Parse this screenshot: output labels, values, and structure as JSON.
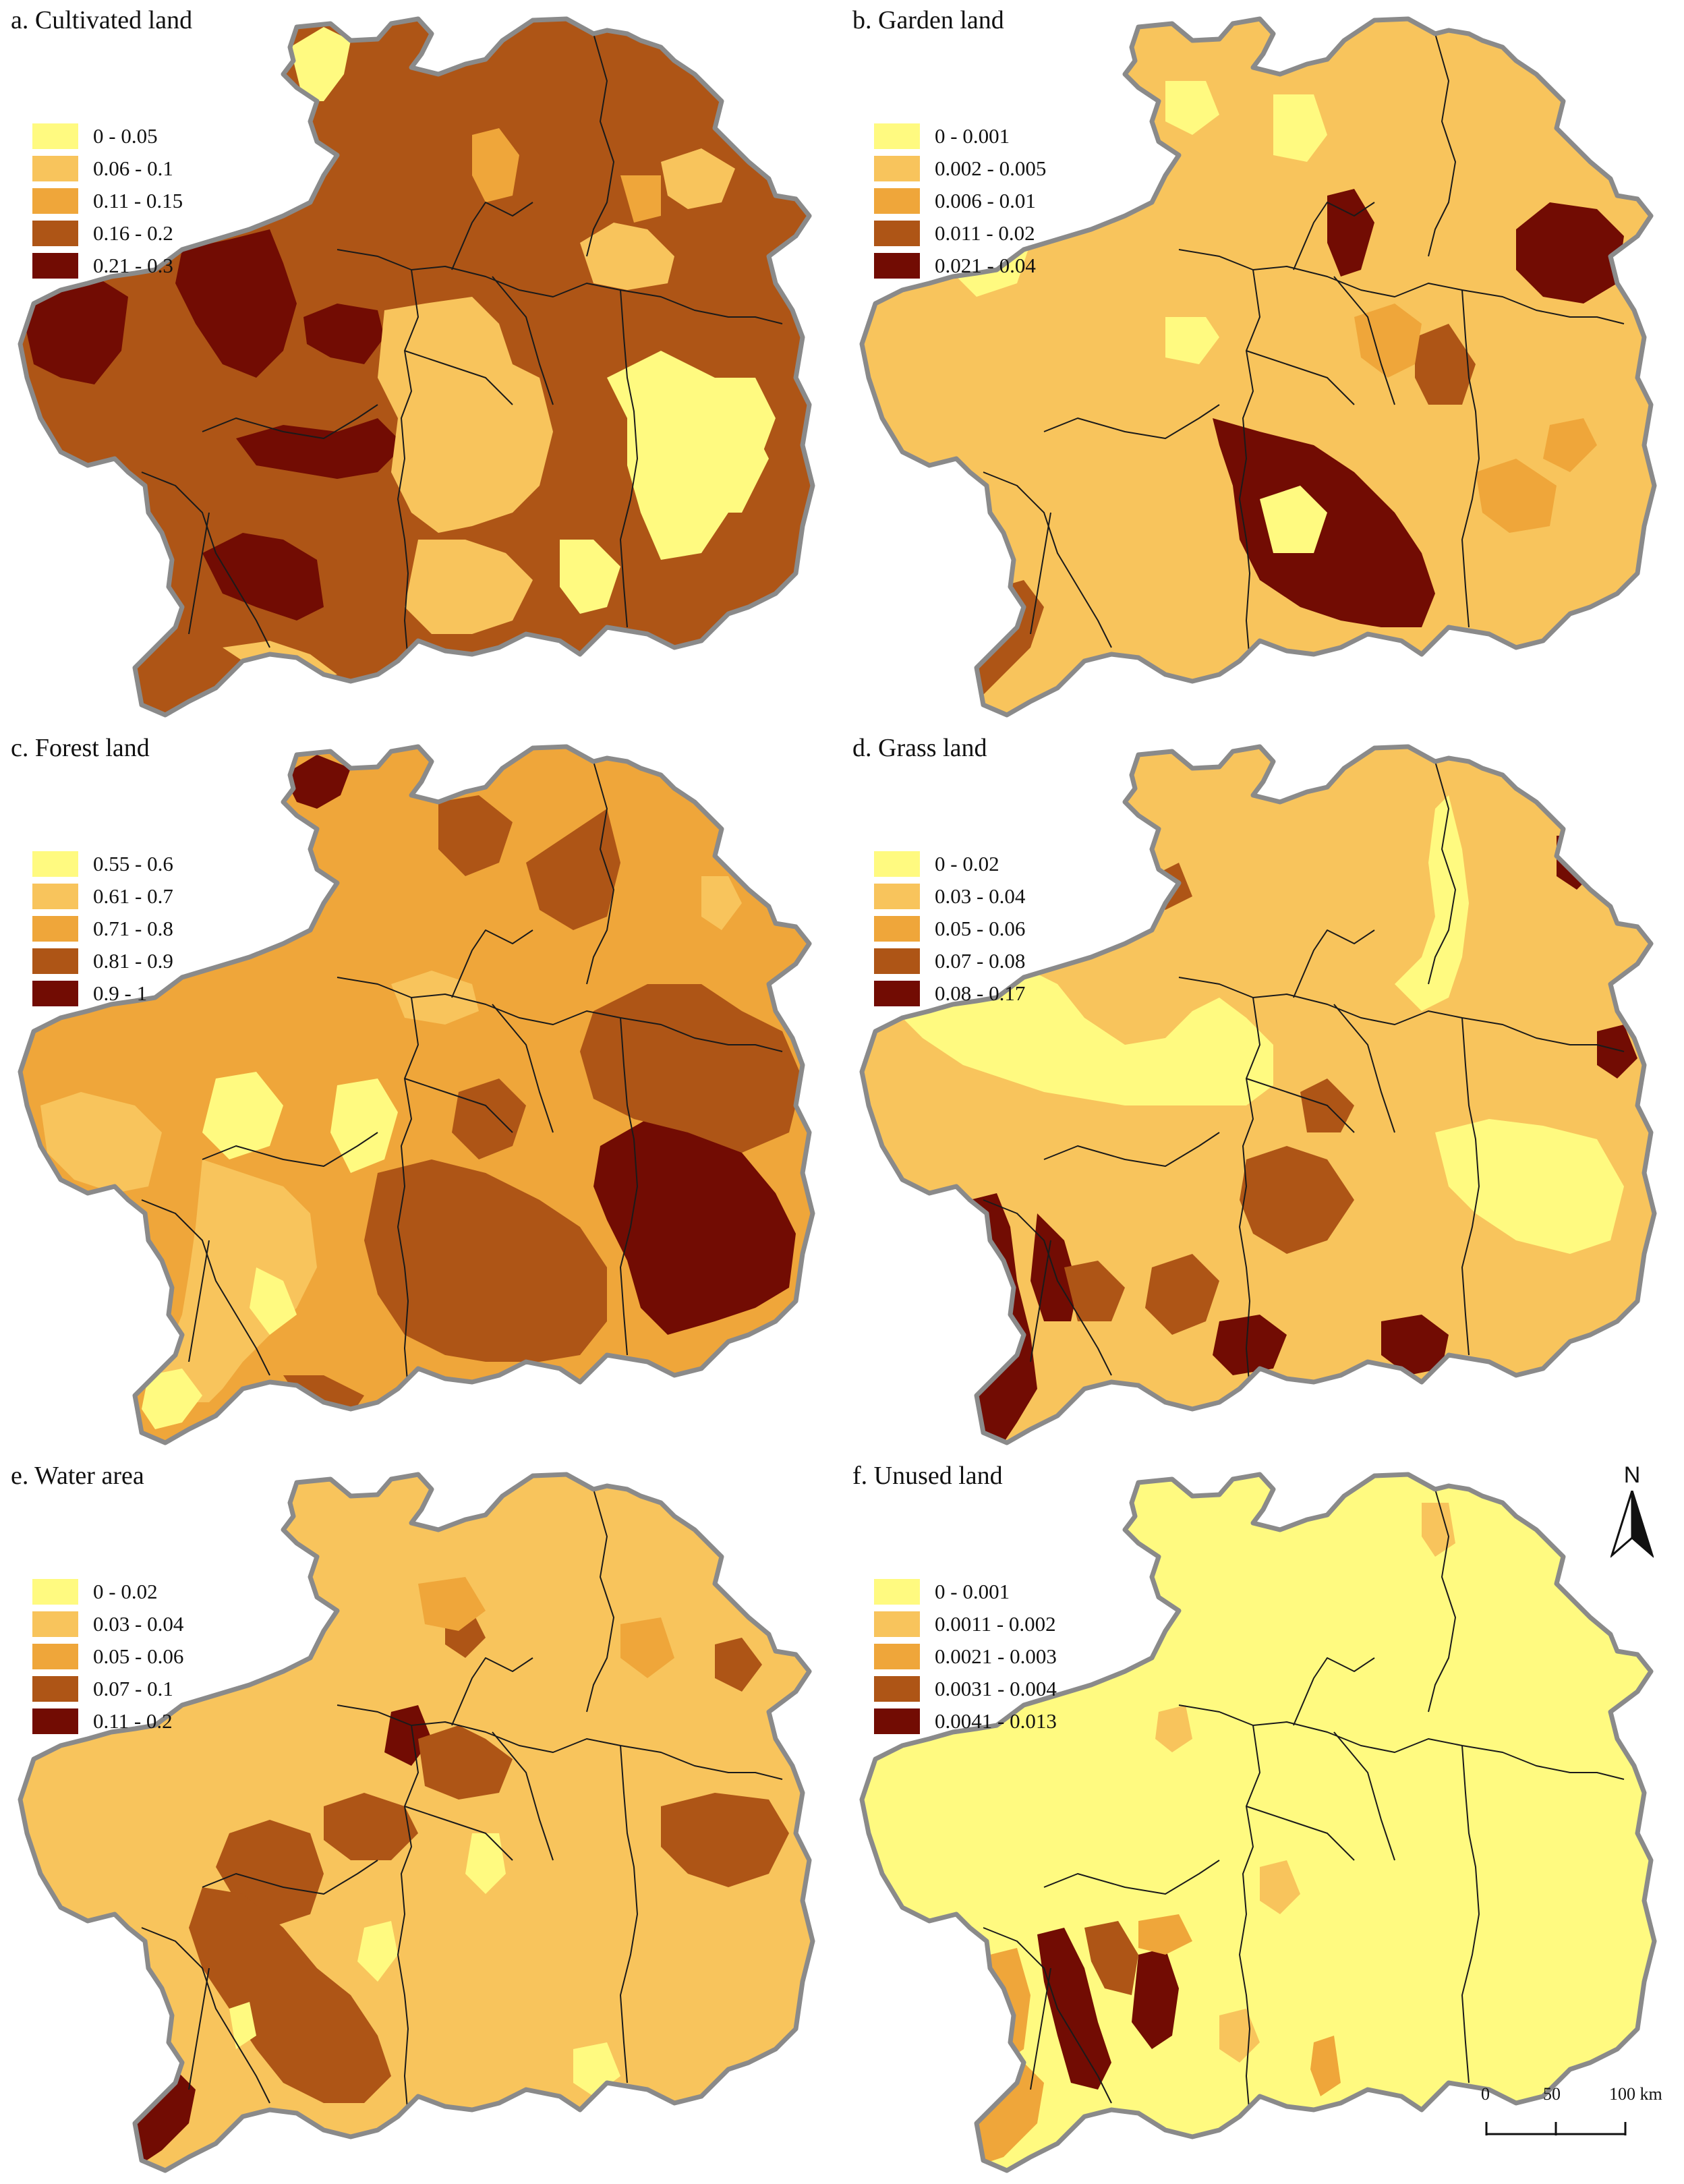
{
  "panels": [
    {
      "title": "a. Cultivated land",
      "legend": [
        "0 - 0.05",
        "0.06 - 0.1",
        "0.11 - 0.15",
        "0.16 - 0.2",
        "0.21 - 0.3"
      ],
      "dominant_class": 3
    },
    {
      "title": "b. Garden land",
      "legend": [
        "0 - 0.001",
        "0.002 - 0.005",
        "0.006 - 0.01",
        "0.011 - 0.02",
        "0.021 - 0.04"
      ],
      "dominant_class": 1
    },
    {
      "title": "c. Forest land",
      "legend": [
        "0.55 - 0.6",
        "0.61 - 0.7",
        "0.71 - 0.8",
        "0.81 - 0.9",
        "0.9 - 1"
      ],
      "dominant_class": 2
    },
    {
      "title": "d. Grass land",
      "legend": [
        "0 - 0.02",
        "0.03 - 0.04",
        "0.05 - 0.06",
        "0.07 - 0.08",
        "0.08 - 0.17"
      ],
      "dominant_class": 1
    },
    {
      "title": "e. Water area",
      "legend": [
        "0 - 0.02",
        "0.03 - 0.04",
        "0.05 - 0.06",
        "0.07 - 0.1",
        "0.11 - 0.2"
      ],
      "dominant_class": 1
    },
    {
      "title": "f. Unused land",
      "legend": [
        "0 - 0.001",
        "0.0011 - 0.002",
        "0.0021 - 0.003",
        "0.0031 - 0.004",
        "0.0041 - 0.013"
      ],
      "dominant_class": 0
    }
  ],
  "colors": [
    "#FFFA80",
    "#F8C45C",
    "#EFA63A",
    "#AE5516",
    "#720C03"
  ],
  "boundary_colors": {
    "province": "#8A8A8A",
    "prefecture": "#1A1A1A"
  },
  "north_arrow": {
    "label": "N",
    "icon": "north-arrow-icon"
  },
  "scale_bar": {
    "ticks": [
      "0",
      "50",
      "100 km"
    ]
  }
}
